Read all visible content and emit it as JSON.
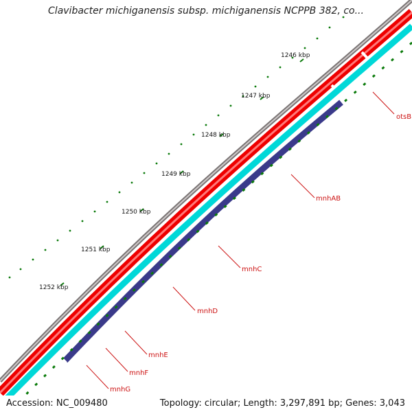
{
  "title": "Clavibacter michiganensis subsp. michiganensis NCPPB 382, co...",
  "ticks": [
    "1246 kbp",
    "1247 kbp",
    "1248 kbp",
    "1249 kbp",
    "1250 kbp",
    "1251 kbp",
    "1252 kbp"
  ],
  "genes": [
    "otsB",
    "mnhAB",
    "mnhC",
    "mnhD",
    "mnhE",
    "mnhF",
    "mnhG"
  ],
  "footer": {
    "accession": "Accession: NC_009480",
    "summary": "Topology: circular; Length: 3,297,891 bp; Genes: 3,043"
  },
  "colors": {
    "backbone": "#7a7474",
    "cds_forward": "#ee0000",
    "cds_reverse": "#00d8d8",
    "dark_feature": "#3a3a8a",
    "tick_green": "#0a7a0a"
  }
}
